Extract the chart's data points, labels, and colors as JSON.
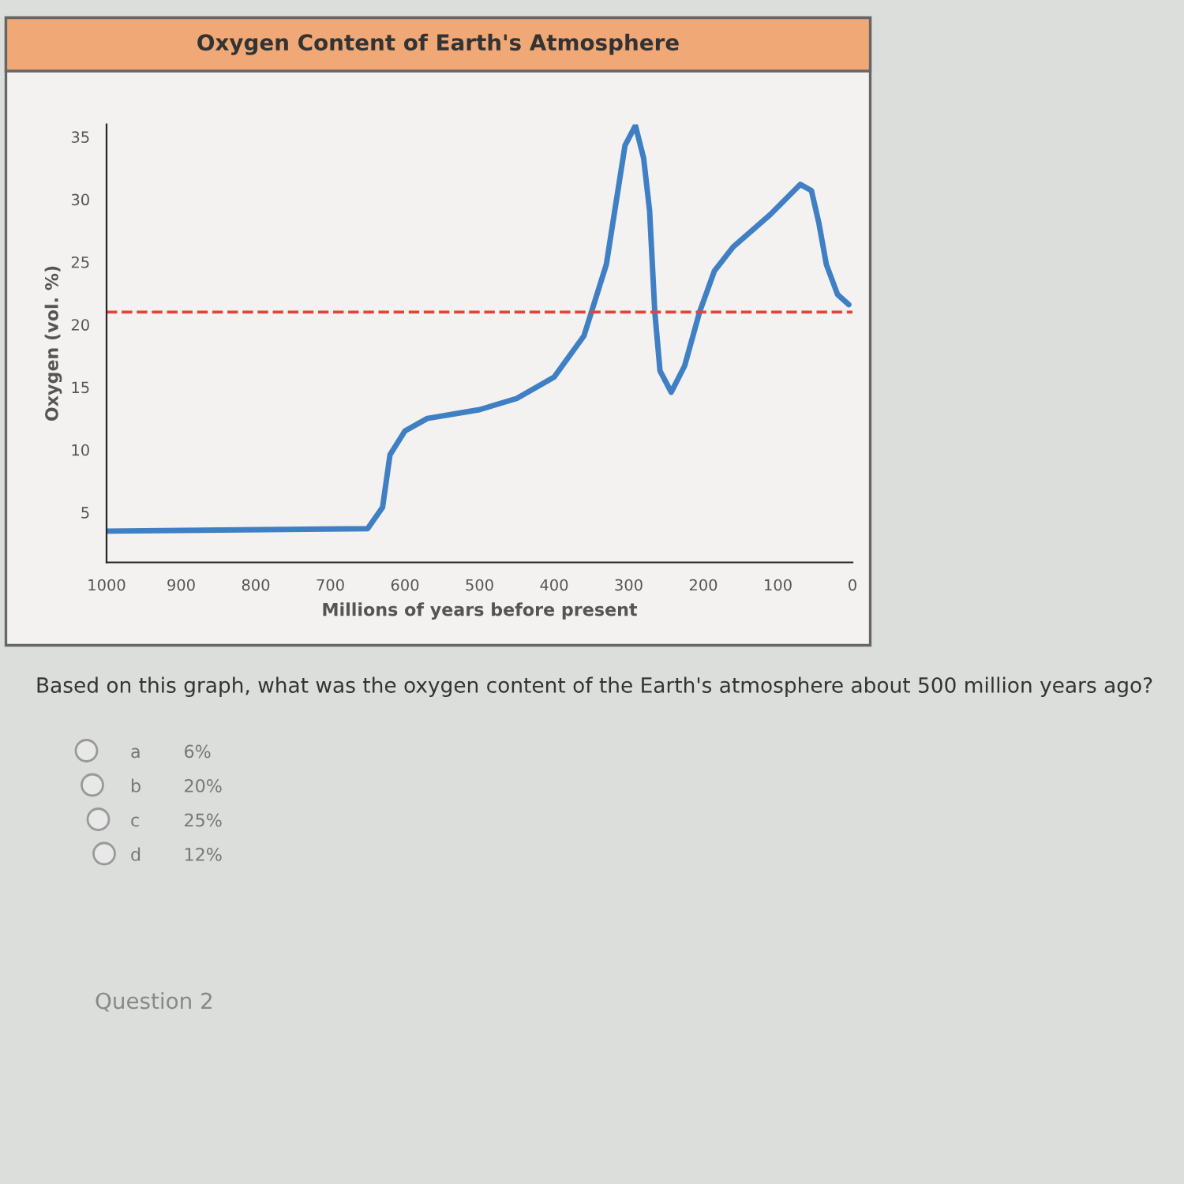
{
  "chart_data": {
    "type": "line",
    "title": "Oxygen Content of Earth's Atmosphere",
    "xlabel": "Millions of years before present",
    "ylabel": "Oxygen (vol. %)",
    "x": [
      1000,
      650,
      630,
      620,
      600,
      570,
      500,
      450,
      400,
      360,
      330,
      305,
      291,
      280,
      272,
      265,
      258,
      243,
      225,
      205,
      185,
      160,
      110,
      70,
      55,
      45,
      35,
      20,
      5
    ],
    "series": [
      {
        "color": "#3f7fc4",
        "values": [
          3.5,
          3.7,
          5.4,
          9.6,
          11.5,
          12.5,
          13.2,
          14.1,
          15.8,
          19.1,
          24.8,
          34.3,
          35.9,
          33.3,
          29.1,
          21,
          16.3,
          14.6,
          16.7,
          21,
          24.3,
          26.2,
          28.8,
          31.2,
          30.7,
          28.1,
          24.8,
          22.4,
          21.6
        ]
      }
    ],
    "xlim": [
      1000,
      0
    ],
    "xticks": [
      1000,
      900,
      800,
      700,
      600,
      500,
      400,
      300,
      200,
      100,
      0
    ],
    "ylim": [
      1,
      36
    ],
    "yticks": [
      5,
      10,
      15,
      20,
      25,
      30,
      35
    ],
    "ref_lines": [
      {
        "axis": "y",
        "value": 21,
        "color": "#e0453a",
        "line_style": "dashed"
      }
    ],
    "grid": false,
    "legend": false,
    "marker": "none",
    "line_style": "solid",
    "annotations": [
      "Based on this graph, what was the oxygen content of the Earth's atmosphere about 500 million years ago?",
      "a",
      "6%",
      "b",
      "20%",
      "c",
      "25%",
      "d",
      "12%",
      "Question 2"
    ]
  }
}
